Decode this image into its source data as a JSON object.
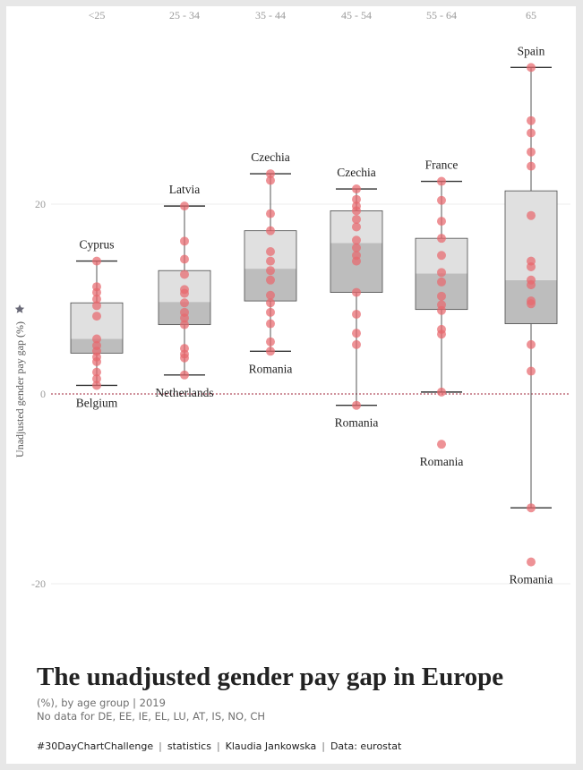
{
  "title": "The unadjusted gender pay gap in Europe",
  "subtitle": "(%), by age group | 2019",
  "note": "No data for DE, EE, IE, EL, LU, AT, IS, NO, CH",
  "footer": [
    "#30DayChartChallenge",
    "statistics",
    "Klaudia Jankowska",
    "Data: eurostat"
  ],
  "chart_data": {
    "type": "box",
    "ylabel": "Unadjusted gender pay gap (%)",
    "ylim": [
      -21.5,
      40.5
    ],
    "yticks": [
      -20,
      0,
      20
    ],
    "categories": [
      "<25",
      "25 - 34",
      "35 - 44",
      "45 - 54",
      "55 - 64",
      "65"
    ],
    "colors": {
      "point": "#e8686d",
      "box_lower": "#bdbdbd",
      "box_upper": "#e0e0e0",
      "whisker": "#555555",
      "zero_line": "#a0243a"
    },
    "groups": [
      {
        "category": "<25",
        "min": 0.9,
        "q1": 4.3,
        "median": 5.8,
        "q3": 9.6,
        "max": 14.0,
        "points": [
          14.0,
          11.3,
          10.7,
          10.0,
          9.3,
          8.2,
          5.8,
          5.1,
          4.5,
          3.9,
          3.4,
          2.3,
          1.6,
          0.9
        ],
        "top_label": "Cyprus",
        "bottom_label": "Belgium"
      },
      {
        "category": "25 - 34",
        "min": 2.0,
        "q1": 7.3,
        "median": 9.7,
        "q3": 13.0,
        "max": 19.8,
        "points": [
          19.8,
          16.1,
          14.2,
          12.6,
          11.0,
          10.6,
          9.6,
          8.6,
          8.0,
          7.3,
          4.8,
          4.2,
          3.8,
          2.0
        ],
        "top_label": "Latvia",
        "bottom_label": "Netherlands"
      },
      {
        "category": "35 - 44",
        "min": 4.5,
        "q1": 9.8,
        "median": 13.2,
        "q3": 17.2,
        "max": 23.2,
        "points": [
          23.2,
          22.5,
          19.0,
          17.2,
          15.0,
          14.0,
          13.0,
          12.0,
          10.4,
          9.6,
          8.6,
          7.4,
          5.5,
          4.5
        ],
        "top_label": "Czechia",
        "bottom_label": "Romania"
      },
      {
        "category": "45 - 54",
        "min": -1.2,
        "q1": 10.7,
        "median": 15.9,
        "q3": 19.3,
        "max": 21.6,
        "points": [
          21.6,
          20.5,
          19.8,
          19.3,
          18.4,
          17.6,
          16.2,
          15.4,
          14.6,
          14.0,
          10.7,
          8.4,
          6.4,
          5.2,
          -1.2
        ],
        "top_label": "Czechia",
        "bottom_label": "Romania"
      },
      {
        "category": "55 - 64",
        "min": 0.2,
        "q1": 8.9,
        "median": 12.7,
        "q3": 16.4,
        "max": 22.4,
        "points": [
          22.4,
          20.4,
          18.2,
          16.4,
          14.6,
          12.8,
          11.8,
          10.3,
          9.4,
          8.8,
          6.8,
          6.3,
          0.2,
          -5.3
        ],
        "top_label": "France",
        "bottom_label": "Romania"
      },
      {
        "category": "65",
        "min": -12.0,
        "q1": 7.4,
        "median": 12.0,
        "q3": 21.4,
        "max": 34.4,
        "points": [
          34.4,
          28.8,
          27.5,
          25.5,
          24.0,
          18.8,
          14.0,
          13.4,
          12.0,
          11.5,
          9.8,
          9.5,
          5.2,
          2.4,
          -12.0,
          -17.7
        ],
        "top_label": "Spain",
        "bottom_label": "Romania"
      }
    ]
  }
}
